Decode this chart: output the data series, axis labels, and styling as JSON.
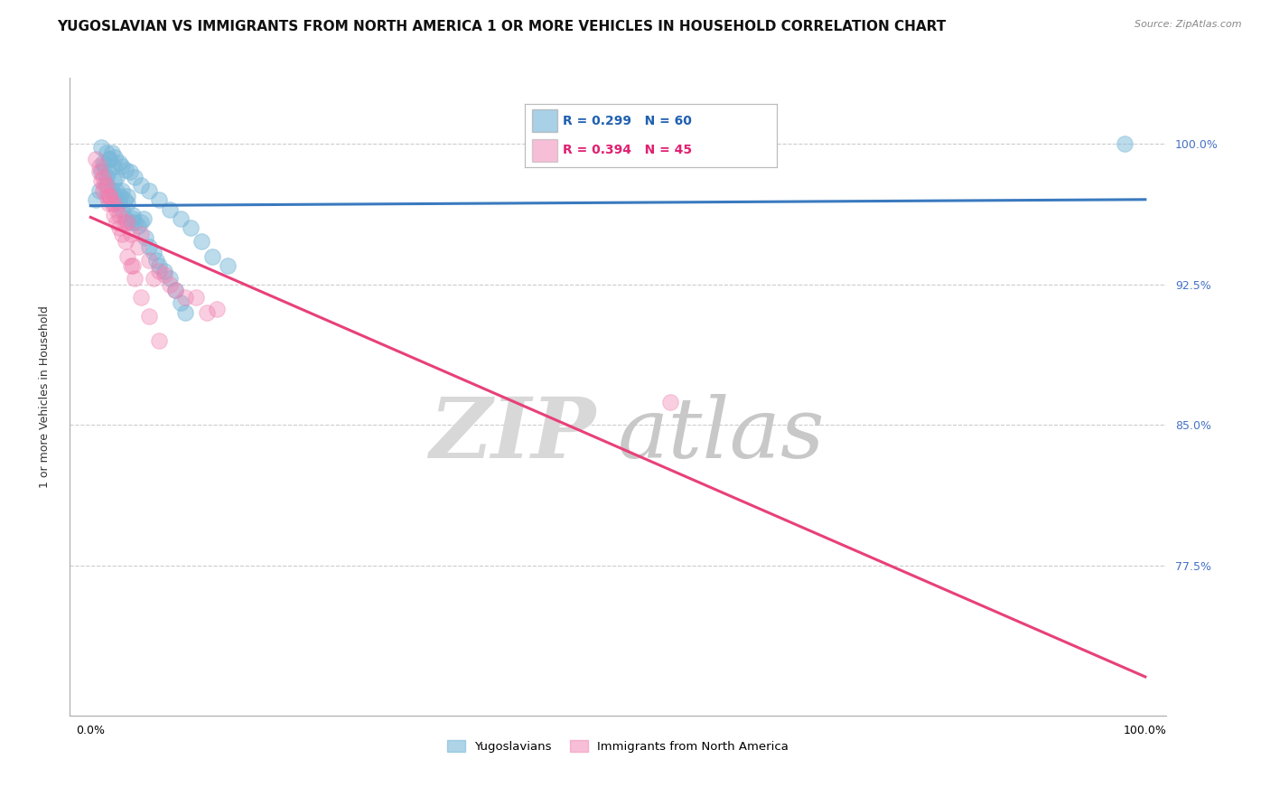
{
  "title": "YUGOSLAVIAN VS IMMIGRANTS FROM NORTH AMERICA 1 OR MORE VEHICLES IN HOUSEHOLD CORRELATION CHART",
  "source": "Source: ZipAtlas.com",
  "ylabel": "1 or more Vehicles in Household",
  "xlabel": "",
  "xlim": [
    -0.02,
    1.02
  ],
  "ylim": [
    0.695,
    1.035
  ],
  "yticks": [
    0.775,
    0.85,
    0.925,
    1.0
  ],
  "ytick_labels": [
    "77.5%",
    "85.0%",
    "92.5%",
    "100.0%"
  ],
  "xticks": [
    0.0,
    0.25,
    0.5,
    0.75,
    1.0
  ],
  "xtick_labels": [
    "0.0%",
    "",
    "",
    "",
    "100.0%"
  ],
  "legend_entries": [
    "Yugoslavians",
    "Immigrants from North America"
  ],
  "blue_color": "#7ab8d9",
  "pink_color": "#f080b0",
  "blue_line_color": "#3a7abf",
  "pink_line_color": "#e8407a",
  "R_blue": 0.299,
  "N_blue": 60,
  "R_pink": 0.394,
  "N_pink": 45,
  "watermark_zip": "ZIP",
  "watermark_atlas": "atlas",
  "background_color": "#ffffff",
  "grid_color": "#cccccc",
  "title_fontsize": 11,
  "axis_fontsize": 9,
  "blue_scatter_x": [
    0.005,
    0.008,
    0.01,
    0.012,
    0.013,
    0.015,
    0.015,
    0.017,
    0.018,
    0.02,
    0.022,
    0.022,
    0.023,
    0.025,
    0.025,
    0.027,
    0.028,
    0.03,
    0.03,
    0.032,
    0.033,
    0.035,
    0.035,
    0.038,
    0.04,
    0.04,
    0.042,
    0.045,
    0.048,
    0.05,
    0.052,
    0.055,
    0.06,
    0.062,
    0.065,
    0.07,
    0.075,
    0.08,
    0.085,
    0.09,
    0.01,
    0.015,
    0.018,
    0.02,
    0.023,
    0.027,
    0.03,
    0.033,
    0.037,
    0.042,
    0.048,
    0.055,
    0.065,
    0.075,
    0.085,
    0.095,
    0.105,
    0.115,
    0.13,
    0.98
  ],
  "blue_scatter_y": [
    0.97,
    0.975,
    0.985,
    0.99,
    0.988,
    0.982,
    0.978,
    0.985,
    0.992,
    0.975,
    0.98,
    0.988,
    0.972,
    0.975,
    0.982,
    0.968,
    0.972,
    0.975,
    0.965,
    0.97,
    0.96,
    0.968,
    0.972,
    0.958,
    0.962,
    0.96,
    0.958,
    0.956,
    0.958,
    0.96,
    0.95,
    0.945,
    0.942,
    0.938,
    0.935,
    0.932,
    0.928,
    0.922,
    0.915,
    0.91,
    0.998,
    0.995,
    0.992,
    0.995,
    0.993,
    0.99,
    0.988,
    0.986,
    0.985,
    0.982,
    0.978,
    0.975,
    0.97,
    0.965,
    0.96,
    0.955,
    0.948,
    0.94,
    0.935,
    1.0
  ],
  "pink_scatter_x": [
    0.005,
    0.008,
    0.01,
    0.012,
    0.013,
    0.015,
    0.017,
    0.018,
    0.02,
    0.022,
    0.025,
    0.027,
    0.03,
    0.033,
    0.035,
    0.038,
    0.042,
    0.048,
    0.055,
    0.065,
    0.008,
    0.012,
    0.015,
    0.018,
    0.022,
    0.027,
    0.032,
    0.038,
    0.045,
    0.055,
    0.065,
    0.075,
    0.09,
    0.11,
    0.04,
    0.06,
    0.08,
    0.1,
    0.12,
    0.018,
    0.025,
    0.035,
    0.048,
    0.07,
    0.55
  ],
  "pink_scatter_y": [
    0.992,
    0.985,
    0.98,
    0.975,
    0.978,
    0.972,
    0.968,
    0.972,
    0.968,
    0.962,
    0.958,
    0.955,
    0.952,
    0.948,
    0.94,
    0.935,
    0.928,
    0.918,
    0.908,
    0.895,
    0.988,
    0.982,
    0.978,
    0.972,
    0.968,
    0.962,
    0.958,
    0.952,
    0.945,
    0.938,
    0.932,
    0.925,
    0.918,
    0.91,
    0.935,
    0.928,
    0.922,
    0.918,
    0.912,
    0.972,
    0.965,
    0.958,
    0.952,
    0.93,
    0.862
  ]
}
